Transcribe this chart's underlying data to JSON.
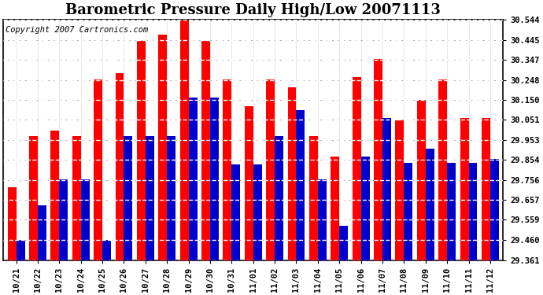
{
  "title": "Barometric Pressure Daily High/Low 20071113",
  "copyright_text": "Copyright 2007 Cartronics.com",
  "labels": [
    "10/21",
    "10/22",
    "10/23",
    "10/24",
    "10/25",
    "10/26",
    "10/27",
    "10/28",
    "10/29",
    "10/30",
    "10/31",
    "11/01",
    "11/02",
    "11/03",
    "11/04",
    "11/05",
    "11/06",
    "11/07",
    "11/08",
    "11/09",
    "11/10",
    "11/11",
    "11/12"
  ],
  "high_values": [
    29.72,
    29.97,
    30.0,
    29.97,
    30.25,
    30.28,
    30.44,
    30.47,
    30.54,
    30.44,
    30.25,
    30.12,
    30.25,
    30.21,
    29.97,
    29.87,
    30.26,
    30.35,
    30.05,
    30.15,
    30.25,
    30.06,
    30.06
  ],
  "low_values": [
    29.46,
    29.63,
    29.76,
    29.76,
    29.46,
    29.97,
    29.97,
    29.97,
    30.16,
    30.16,
    29.83,
    29.83,
    29.97,
    30.1,
    29.76,
    29.53,
    29.87,
    30.06,
    29.84,
    29.91,
    29.84,
    29.84,
    29.86
  ],
  "high_color": "#ff0000",
  "low_color": "#0000cc",
  "bar_width": 0.4,
  "ylim_min": 29.361,
  "ylim_max": 30.544,
  "yticks": [
    29.361,
    29.46,
    29.559,
    29.657,
    29.756,
    29.854,
    29.953,
    30.051,
    30.15,
    30.248,
    30.347,
    30.445,
    30.544
  ],
  "ytick_labels": [
    "29.361",
    "29.460",
    "29.559",
    "29.657",
    "29.756",
    "29.854",
    "29.953",
    "30.051",
    "30.150",
    "30.248",
    "30.347",
    "30.445",
    "30.544"
  ],
  "background_color": "#ffffff",
  "grid_color": "#aaaaaa",
  "title_fontsize": 13,
  "tick_fontsize": 7.5,
  "copyright_fontsize": 7.5
}
